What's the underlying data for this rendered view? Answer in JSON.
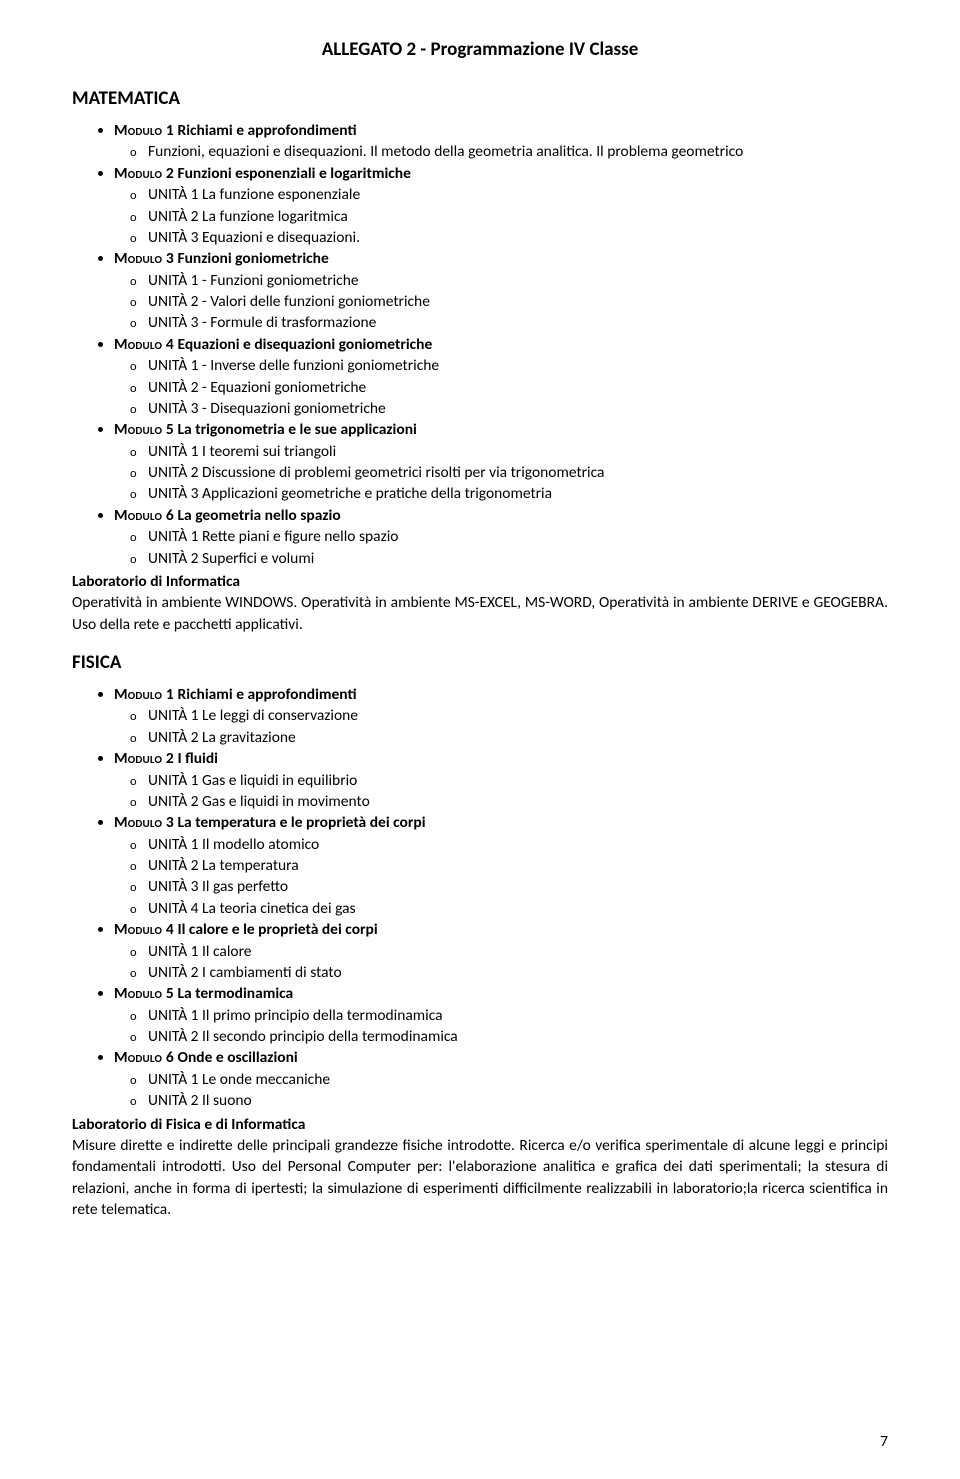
{
  "title": "ALLEGATO 2 - Programmazione IV Classe",
  "page_number": "7",
  "font_family": "Calibri",
  "text_color": "#000000",
  "background_color": "#ffffff",
  "subjects": [
    {
      "name": "MATEMATICA",
      "modules": [
        {
          "label": "Modulo 1",
          "title": "Richiami e approfondimenti",
          "units": [
            "Funzioni, equazioni e disequazioni. Il metodo della geometria analitica. Il problema geometrico"
          ]
        },
        {
          "label": "Modulo 2",
          "title": "Funzioni esponenziali e logaritmiche",
          "units": [
            "UNITÀ 1 La funzione esponenziale",
            "UNITÀ 2 La funzione logaritmica",
            "UNITÀ 3 Equazioni e disequazioni."
          ]
        },
        {
          "label": "Modulo 3",
          "title": "Funzioni goniometriche",
          "units": [
            "UNITÀ 1 - Funzioni goniometriche",
            "UNITÀ 2 - Valori delle funzioni goniometriche",
            "UNITÀ 3 - Formule di trasformazione"
          ]
        },
        {
          "label": "Modulo 4",
          "title": "Equazioni e disequazioni goniometriche",
          "units": [
            "UNITÀ 1 - Inverse delle funzioni goniometriche",
            "UNITÀ 2 - Equazioni goniometriche",
            "UNITÀ 3  - Disequazioni goniometriche"
          ]
        },
        {
          "label": "Modulo 5",
          "title": "La trigonometria e le sue applicazioni",
          "units": [
            "UNITÀ 1 I teoremi sui triangoli",
            "UNITÀ 2 Discussione di problemi geometrici risolti per via trigonometrica",
            "UNITÀ 3 Applicazioni geometriche e pratiche della trigonometria"
          ]
        },
        {
          "label": "Modulo 6",
          "title": "La geometria nello spazio",
          "units": [
            "UNITÀ 1 Rette piani e figure nello spazio",
            "UNITÀ 2 Superfici e volumi"
          ]
        }
      ],
      "lab_heading": "Laboratorio di Informatica",
      "lab_text": "Operatività in ambiente WINDOWS. Operatività in ambiente MS-EXCEL, MS-WORD, Operatività in ambiente DERIVE e GEOGEBRA. Uso della rete e pacchetti applicativi."
    },
    {
      "name": "FISICA",
      "modules": [
        {
          "label": "Modulo 1",
          "title": "Richiami e approfondimenti",
          "units": [
            "UNITÀ 1 Le leggi di conservazione",
            "UNITÀ 2 La gravitazione"
          ]
        },
        {
          "label": "Modulo 2",
          "title": "I fluidi",
          "units": [
            "UNITÀ 1 Gas e liquidi in equilibrio",
            "UNITÀ 2 Gas e liquidi in movimento"
          ]
        },
        {
          "label": "Modulo 3",
          "title": "La temperatura e le proprietà dei corpi",
          "units": [
            "UNITÀ 1 Il modello atomico",
            "UNITÀ 2 La temperatura",
            "UNITÀ 3 Il gas perfetto",
            "UNITÀ 4 La teoria cinetica dei gas"
          ]
        },
        {
          "label": "Modulo 4",
          "title": "Il calore e le proprietà dei corpi",
          "units": [
            "UNITÀ 1 Il calore",
            "UNITÀ 2 I cambiamenti di stato"
          ]
        },
        {
          "label": "Modulo 5",
          "title": "La termodinamica",
          "units": [
            "UNITÀ 1 Il primo principio della termodinamica",
            "UNITÀ 2 Il secondo principio della termodinamica"
          ]
        },
        {
          "label": "Modulo 6",
          "title": "Onde e oscillazioni",
          "units": [
            "UNITÀ 1 Le onde meccaniche",
            "UNITÀ 2 Il suono"
          ]
        }
      ],
      "lab_heading": "Laboratorio di Fisica e di Informatica",
      "lab_text": "Misure dirette e indirette delle principali grandezze fisiche introdotte. Ricerca e/o verifica sperimentale di alcune leggi e principi fondamentali introdotti. Uso del Personal Computer per: l'elaborazione analitica e grafica dei dati sperimentali; la stesura di relazioni, anche in forma di ipertesti; la simulazione di esperimenti difficilmente realizzabili in laboratorio;la ricerca scientifica in rete telematica."
    }
  ]
}
